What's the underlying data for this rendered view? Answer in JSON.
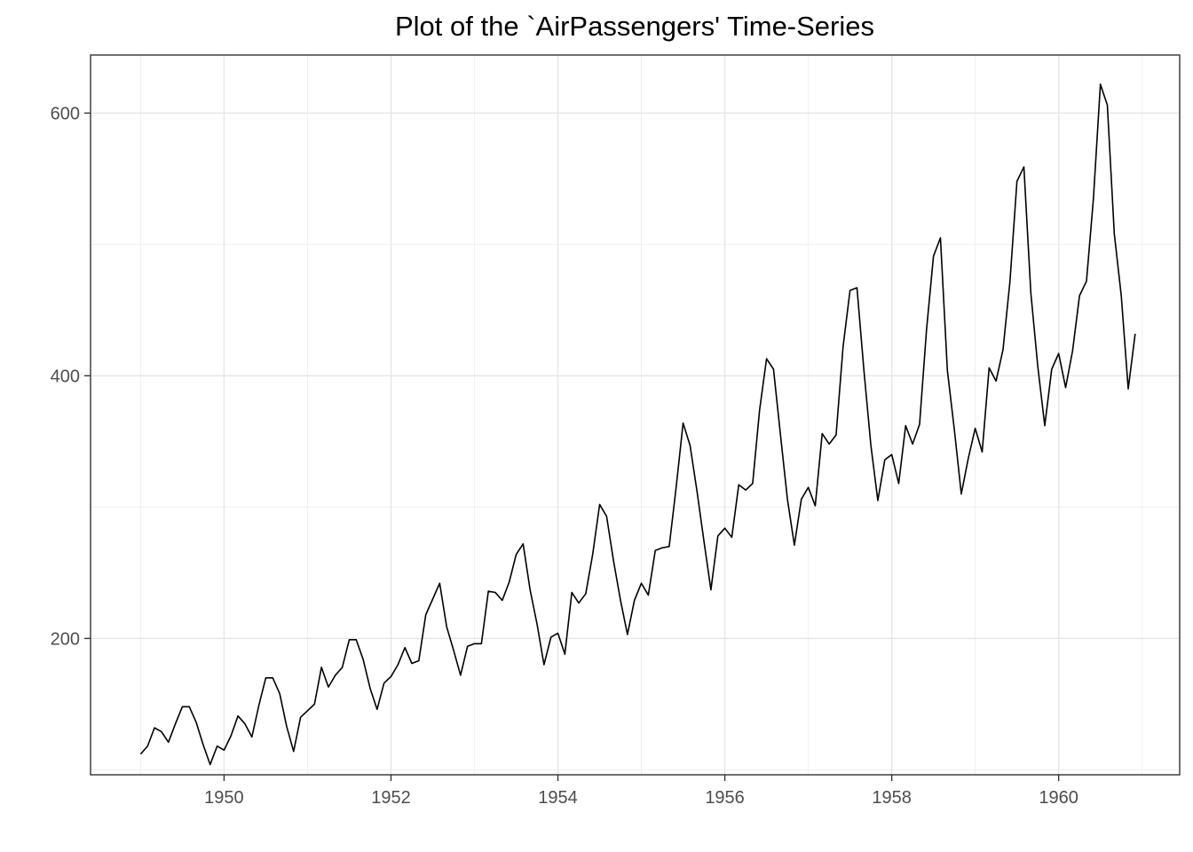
{
  "chart_data": {
    "type": "line",
    "title": "Plot of the `AirPassengers' Time-Series",
    "xlabel": "",
    "ylabel": "",
    "xlim": [
      1948.4,
      1961.45
    ],
    "ylim": [
      96.2,
      644.2
    ],
    "x_major_ticks": [
      1950,
      1952,
      1954,
      1956,
      1958,
      1960
    ],
    "x_minor_ticks": [
      1949,
      1951,
      1953,
      1955,
      1957,
      1959,
      1961
    ],
    "y_major_ticks": [
      200,
      400,
      600
    ],
    "y_minor_ticks": [
      100,
      300,
      500
    ],
    "x_tick_labels": [
      "1950",
      "1952",
      "1954",
      "1956",
      "1958",
      "1960"
    ],
    "y_tick_labels": [
      "200",
      "400",
      "600"
    ],
    "grid": true,
    "theme": "bw",
    "series": [
      {
        "start": [
          1949,
          1
        ],
        "frequency": 12,
        "color": "#000000",
        "values": [
          112,
          118,
          132,
          129,
          121,
          135,
          148,
          148,
          136,
          119,
          104,
          118,
          115,
          126,
          141,
          135,
          125,
          149,
          170,
          170,
          158,
          133,
          114,
          140,
          145,
          150,
          178,
          163,
          172,
          178,
          199,
          199,
          184,
          162,
          146,
          166,
          171,
          180,
          193,
          181,
          183,
          218,
          230,
          242,
          209,
          191,
          172,
          194,
          196,
          196,
          236,
          235,
          229,
          243,
          264,
          272,
          237,
          211,
          180,
          201,
          204,
          188,
          235,
          227,
          234,
          264,
          302,
          293,
          259,
          229,
          203,
          229,
          242,
          233,
          267,
          269,
          270,
          315,
          364,
          347,
          312,
          274,
          237,
          278,
          284,
          277,
          317,
          313,
          318,
          374,
          413,
          405,
          355,
          306,
          271,
          306,
          315,
          301,
          356,
          348,
          355,
          422,
          465,
          467,
          404,
          347,
          305,
          336,
          340,
          318,
          362,
          348,
          363,
          435,
          491,
          505,
          404,
          359,
          310,
          337,
          360,
          342,
          406,
          396,
          420,
          472,
          548,
          559,
          463,
          407,
          362,
          405,
          417,
          391,
          419,
          461,
          472,
          535,
          622,
          606,
          508,
          461,
          390,
          432
        ]
      }
    ]
  }
}
